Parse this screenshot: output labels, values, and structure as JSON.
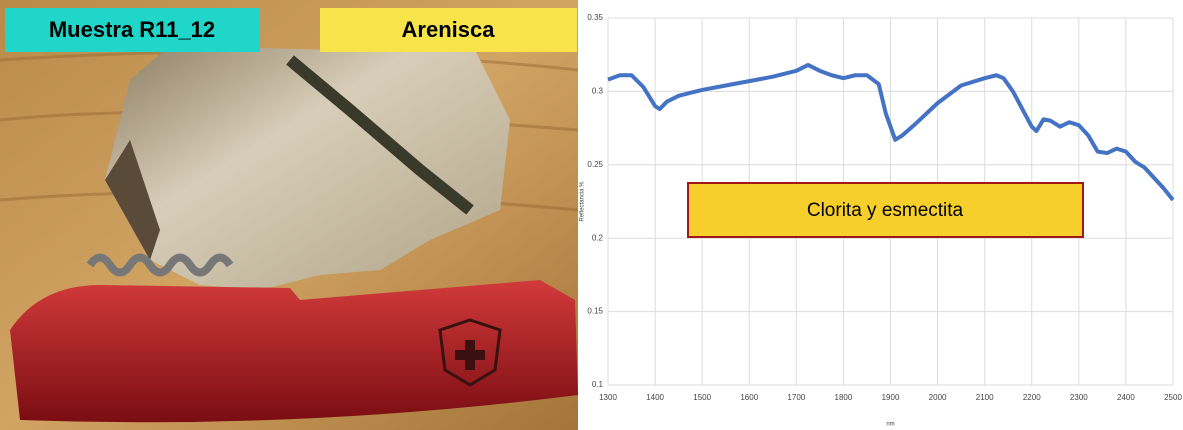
{
  "sample_label": "Muestra R11_12",
  "rock_label": "Arenisca",
  "chart_data": {
    "type": "line",
    "annotation": "Clorita y esmectita",
    "x_label": "nm",
    "y_label": "Reflectancia %",
    "x": [
      1300,
      1325,
      1350,
      1375,
      1400,
      1410,
      1425,
      1450,
      1475,
      1500,
      1550,
      1600,
      1650,
      1700,
      1725,
      1750,
      1775,
      1800,
      1825,
      1850,
      1875,
      1890,
      1910,
      1925,
      1950,
      2000,
      2050,
      2100,
      2125,
      2140,
      2160,
      2180,
      2200,
      2210,
      2225,
      2240,
      2260,
      2280,
      2300,
      2320,
      2340,
      2360,
      2380,
      2400,
      2420,
      2440,
      2460,
      2480,
      2500
    ],
    "series": [
      {
        "color": "#4472c4",
        "values": [
          0.308,
          0.311,
          0.311,
          0.303,
          0.29,
          0.288,
          0.293,
          0.297,
          0.299,
          0.301,
          0.304,
          0.307,
          0.31,
          0.314,
          0.318,
          0.314,
          0.311,
          0.309,
          0.311,
          0.311,
          0.305,
          0.285,
          0.267,
          0.27,
          0.277,
          0.292,
          0.304,
          0.309,
          0.311,
          0.309,
          0.3,
          0.288,
          0.276,
          0.273,
          0.281,
          0.28,
          0.276,
          0.279,
          0.277,
          0.27,
          0.259,
          0.258,
          0.261,
          0.259,
          0.252,
          0.248,
          0.241,
          0.234,
          0.226
        ]
      }
    ],
    "xlim": [
      1300,
      2500
    ],
    "xticks": [
      1300,
      1400,
      1500,
      1600,
      1700,
      1800,
      1900,
      2000,
      2100,
      2200,
      2300,
      2400,
      2500
    ],
    "ylim": [
      0.1,
      0.35
    ],
    "yticks": [
      0.1,
      0.15,
      0.2,
      0.25,
      0.3,
      0.35
    ],
    "grid": true
  }
}
